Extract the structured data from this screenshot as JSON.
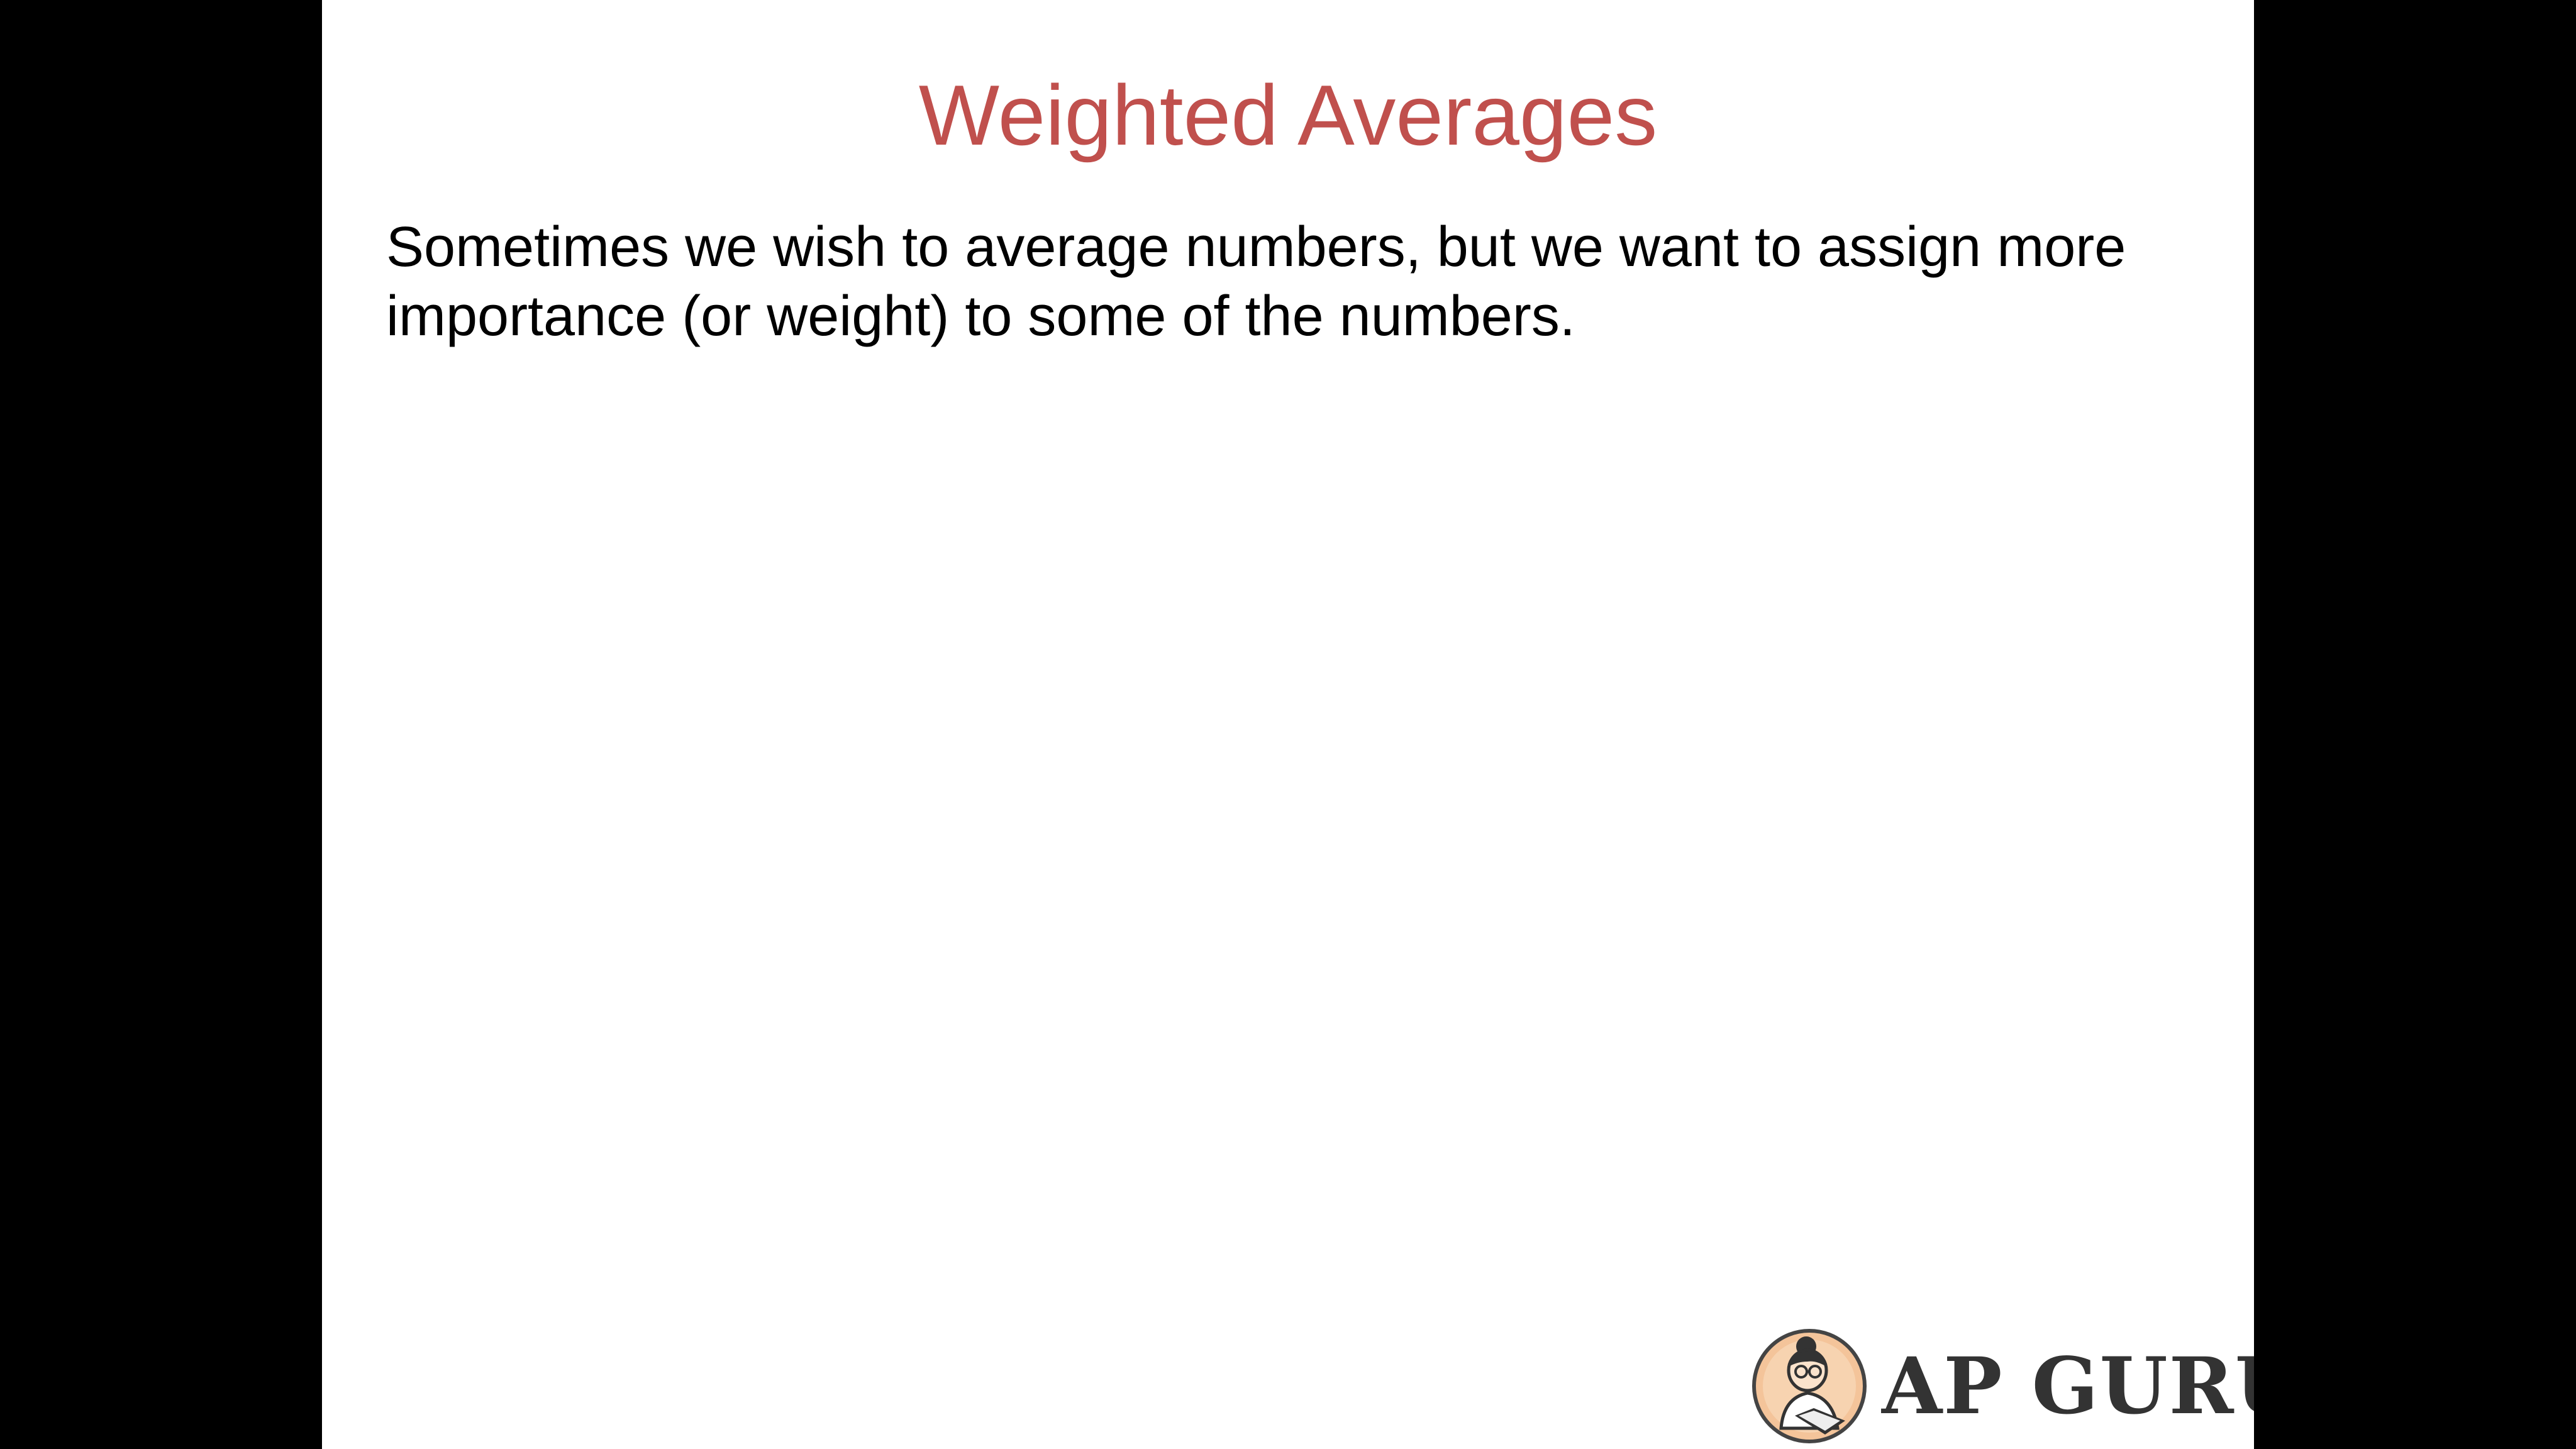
{
  "slide": {
    "title": "Weighted Averages",
    "body": "Sometimes we wish to average numbers, but we want to assign more importance (or weight) to some of the numbers."
  },
  "logo": {
    "text": "AP GURU",
    "icon": "reader-mascot-icon"
  },
  "colors": {
    "title": "#c0504d",
    "body": "#000000",
    "background": "#ffffff",
    "letterbox": "#000000",
    "logo_text": "#333333",
    "badge": "#f4c49a"
  }
}
